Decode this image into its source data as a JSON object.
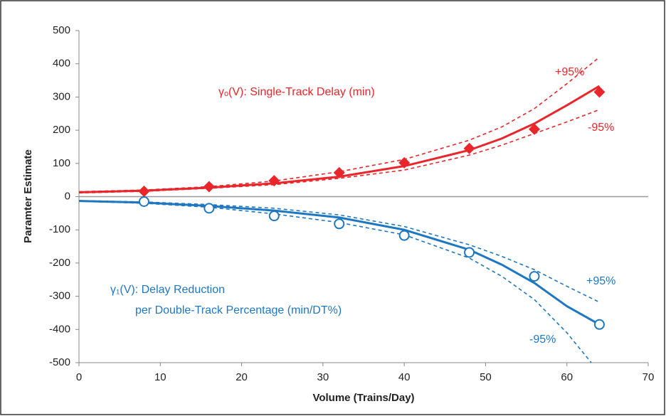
{
  "chart_data": {
    "type": "line",
    "xlabel": "Volume (Trains/Day)",
    "ylabel": "Paramter Estimate",
    "xlim": [
      0,
      70
    ],
    "xticks": [
      0,
      10,
      20,
      30,
      40,
      50,
      60,
      70
    ],
    "ylim": [
      -500,
      500
    ],
    "yticks": [
      -500,
      -400,
      -300,
      -200,
      -100,
      0,
      100,
      200,
      300,
      400,
      500
    ],
    "zero_line": true,
    "series": [
      {
        "color": "#e8262b",
        "style": "solid",
        "x": [
          0,
          8,
          16,
          24,
          32,
          40,
          48,
          52,
          56,
          60,
          64
        ],
        "values": [
          13,
          18,
          27,
          40,
          60,
          92,
          140,
          175,
          220,
          275,
          333
        ]
      },
      {
        "color": "#e8262b",
        "style": "dashed",
        "x": [
          0,
          8,
          16,
          24,
          32,
          40,
          48,
          52,
          56,
          60,
          64
        ],
        "values": [
          15,
          20,
          30,
          47,
          75,
          112,
          170,
          210,
          265,
          340,
          420
        ]
      },
      {
        "color": "#e8262b",
        "style": "dashed",
        "x": [
          0,
          8,
          16,
          24,
          32,
          40,
          48,
          52,
          56,
          60,
          64
        ],
        "values": [
          11,
          16,
          25,
          36,
          55,
          80,
          125,
          155,
          190,
          225,
          262
        ]
      },
      {
        "color": "#e8262b",
        "style": "diamond",
        "x": [
          8,
          16,
          24,
          32,
          40,
          48,
          56,
          64
        ],
        "values": [
          16,
          30,
          48,
          72,
          102,
          145,
          203,
          315
        ]
      },
      {
        "color": "#1f77c0",
        "style": "solid",
        "x": [
          0,
          8,
          16,
          24,
          32,
          40,
          48,
          52,
          56,
          60,
          64
        ],
        "values": [
          -13,
          -18,
          -28,
          -42,
          -63,
          -100,
          -160,
          -205,
          -260,
          -330,
          -385
        ]
      },
      {
        "color": "#1f77c0",
        "style": "dashed",
        "x": [
          0,
          8,
          16,
          24,
          32,
          40,
          48,
          52,
          56,
          60,
          64
        ],
        "values": [
          -12,
          -16,
          -24,
          -35,
          -55,
          -90,
          -145,
          -180,
          -220,
          -270,
          -318
        ]
      },
      {
        "color": "#1f77c0",
        "style": "dashed",
        "x": [
          0,
          8,
          16,
          24,
          32,
          40,
          48,
          52,
          56,
          60,
          63
        ],
        "values": [
          -14,
          -20,
          -32,
          -52,
          -78,
          -115,
          -185,
          -240,
          -310,
          -410,
          -500
        ]
      },
      {
        "color": "#1f77c0",
        "style": "circle",
        "x": [
          8,
          16,
          24,
          32,
          40,
          48,
          56,
          64
        ],
        "values": [
          -15,
          -35,
          -58,
          -82,
          -117,
          -168,
          -240,
          -385
        ]
      }
    ],
    "annotations": [
      {
        "text": "γₒ(V): Single-Track Delay (min)",
        "color": "#e8262b"
      },
      {
        "text": "+95%",
        "color": "#e8262b"
      },
      {
        "text": "-95%",
        "color": "#e8262b"
      },
      {
        "text": "γ₁(V): Delay Reduction",
        "color": "#1f77c0"
      },
      {
        "text": "per Double-Track Percentage (min/DT%)",
        "color": "#1f77c0"
      },
      {
        "text": "+95%",
        "color": "#1f77c0"
      },
      {
        "text": "-95%",
        "color": "#1f77c0"
      }
    ]
  }
}
